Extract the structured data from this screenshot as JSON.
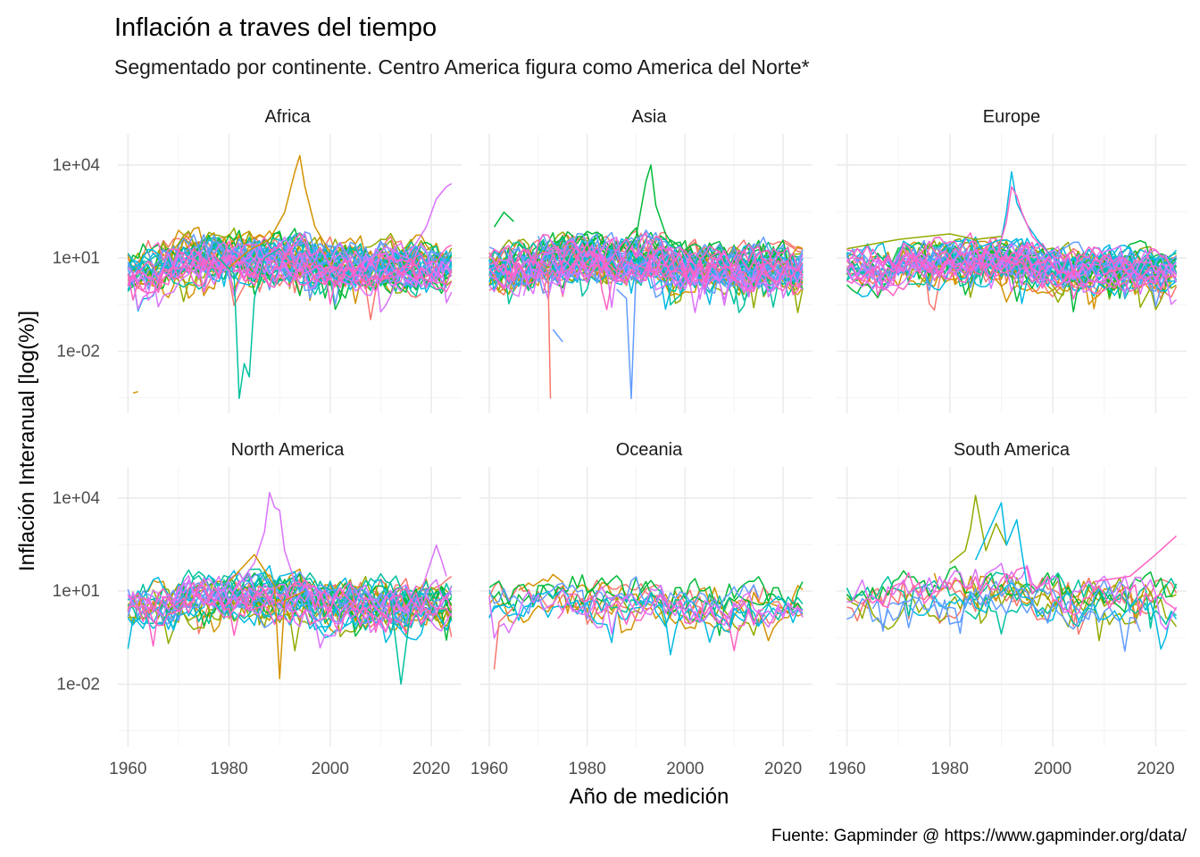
{
  "chart_data": {
    "type": "line",
    "title": "Inflación a traves del tiempo",
    "subtitle": "Segmentado por continente. Centro America figura como America del Norte*",
    "xlabel": "Año de medición",
    "ylabel": "Inflación Interanual [log(%)]",
    "caption": "Fuente: Gapminder @ https://www.gapminder.org/data/",
    "y_scale": "log10",
    "xlim": [
      1958,
      2026
    ],
    "ylim": [
      0.0001,
      100000
    ],
    "x_ticks": [
      "1960",
      "1980",
      "2000",
      "2020"
    ],
    "x_tick_values": [
      1960,
      1980,
      2000,
      2020
    ],
    "y_ticks": [
      "1e-02",
      "1e+01",
      "1e+04"
    ],
    "y_tick_values": [
      0.01,
      10,
      10000
    ],
    "grid": true,
    "legend": "none",
    "palette": [
      "#F8766D",
      "#D39200",
      "#93AA00",
      "#00BA38",
      "#00C19F",
      "#00B9E3",
      "#619CFF",
      "#DB72FB",
      "#FF61C3"
    ],
    "panels": [
      {
        "name": "Africa",
        "series_count": 48,
        "typical_range": [
          0.5,
          60
        ],
        "highlights": [
          {
            "x": [
              1980,
              1984,
              1988,
              1991,
              1993,
              1994,
              1995,
              1997,
              2000
            ],
            "y": [
              5,
              18,
              40,
              300,
              6000,
              20000,
              2000,
              100,
              15
            ]
          },
          {
            "x": [
              1978,
              1981,
              1982,
              1983,
              1984,
              1985,
              1987,
              1990
            ],
            "y": [
              10,
              3,
              0.0003,
              0.004,
              0.0015,
              0.5,
              10,
              20
            ]
          },
          {
            "x": [
              2012,
              2015,
              2017,
              2019,
              2021,
              2023,
              2024
            ],
            "y": [
              20,
              10,
              30,
              100,
              800,
              2000,
              2500
            ]
          },
          {
            "x": [
              1961,
              1962
            ],
            "y": [
              0.00045,
              0.0005
            ]
          }
        ]
      },
      {
        "name": "Asia",
        "series_count": 48,
        "typical_range": [
          0.5,
          60
        ],
        "highlights": [
          {
            "x": [
              1988,
              1990,
              1992,
              1993,
              1994,
              1996,
              1998
            ],
            "y": [
              15,
              50,
              3000,
              10000,
              500,
              60,
              20
            ]
          },
          {
            "x": [
              1986,
              1988,
              1989,
              1990,
              1992
            ],
            "y": [
              1,
              0.5,
              0.0003,
              5,
              10
            ]
          },
          {
            "x": [
              1970,
              1972,
              1972.5
            ],
            "y": [
              8,
              4,
              0.0003
            ]
          },
          {
            "x": [
              1961,
              1963,
              1965
            ],
            "y": [
              100,
              300,
              150
            ]
          },
          {
            "x": [
              1973,
              1975
            ],
            "y": [
              0.05,
              0.02
            ]
          }
        ]
      },
      {
        "name": "Europe",
        "series_count": 45,
        "typical_range": [
          0.5,
          40
        ],
        "highlights": [
          {
            "x": [
              1985,
              1990,
              1991,
              1992,
              1993,
              1995,
              1997,
              2000
            ],
            "y": [
              20,
              40,
              300,
              6000,
              600,
              120,
              40,
              10
            ]
          },
          {
            "x": [
              1989,
              1991,
              1992,
              1993,
              1994,
              1996,
              1999
            ],
            "y": [
              10,
              150,
              2000,
              1000,
              300,
              50,
              15
            ]
          },
          {
            "x": [
              1960,
              1970,
              1980,
              1985,
              1990
            ],
            "y": [
              20,
              40,
              60,
              40,
              50
            ]
          }
        ]
      },
      {
        "name": "North America",
        "series_count": 35,
        "typical_range": [
          0.3,
          40
        ],
        "highlights": [
          {
            "x": [
              1981,
              1985,
              1987,
              1988,
              1989,
              1990,
              1991,
              1993
            ],
            "y": [
              10,
              80,
              800,
              15000,
              5000,
              4000,
              200,
              20
            ]
          },
          {
            "x": [
              1980,
              1985,
              1989,
              1990,
              1991,
              1995
            ],
            "y": [
              20,
              150,
              15,
              0.015,
              5,
              10
            ]
          },
          {
            "x": [
              2012,
              2014,
              2016
            ],
            "y": [
              5,
              0.01,
              3
            ]
          },
          {
            "x": [
              2018,
              2021,
              2022,
              2023
            ],
            "y": [
              10,
              300,
              100,
              30
            ]
          }
        ]
      },
      {
        "name": "Oceania",
        "series_count": 14,
        "typical_range": [
          0.3,
          30
        ],
        "highlights": [
          {
            "x": [
              1961,
              1962,
              1965
            ],
            "y": [
              0.03,
              1,
              3
            ]
          }
        ]
      },
      {
        "name": "South America",
        "series_count": 13,
        "typical_range": [
          0.5,
          80
        ],
        "highlights": [
          {
            "x": [
              1980,
              1983,
              1984,
              1985,
              1987,
              1989,
              1991
            ],
            "y": [
              80,
              200,
              1000,
              12000,
              200,
              1500,
              300
            ]
          },
          {
            "x": [
              1985,
              1989,
              1990,
              1991,
              1993,
              1995
            ],
            "y": [
              100,
              3000,
              7000,
              300,
              2000,
              15
            ]
          },
          {
            "x": [
              2008,
              2015,
              2020,
              2024
            ],
            "y": [
              20,
              30,
              150,
              600
            ]
          }
        ]
      }
    ]
  }
}
